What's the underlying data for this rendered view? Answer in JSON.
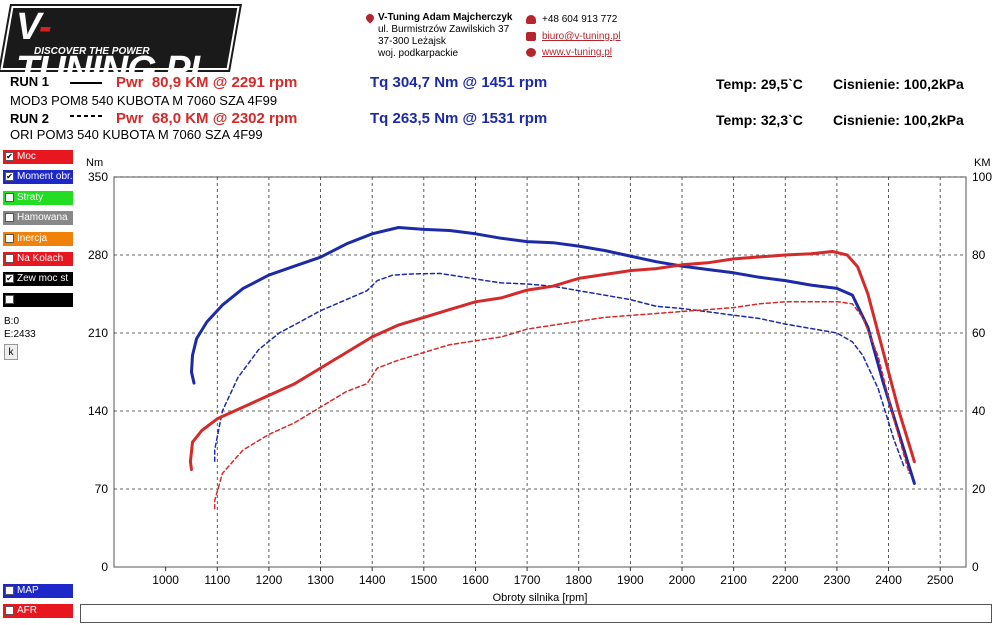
{
  "logo": {
    "title_a": "V",
    "title_dash": "-",
    "title_b": "TUNING.PL",
    "slogan": "DISCOVER THE POWER"
  },
  "contact": {
    "company": "V-Tuning Adam Majcherczyk",
    "street": "ul. Burmistrzów Zawilskich 37",
    "city": "37-300 Leżajsk",
    "region": "woj. podkarpackie",
    "phone": "+48 604 913 772",
    "email": "biuro@v-tuning.pl",
    "website": "www.v-tuning.pl"
  },
  "runs": [
    {
      "label": "RUN 1",
      "pwr": "Pwr  80,9 KM @ 2291 rpm",
      "tq": "Tq 304,7 Nm @ 1451 rpm",
      "temp": "Temp: 29,5`C",
      "press": "Cisnienie: 100,2kPa",
      "desc": "MOD3 POM8 540 KUBOTA M 7060 SZA 4F99"
    },
    {
      "label": "RUN 2",
      "pwr": "Pwr  68,0 KM @ 2302 rpm",
      "tq": "Tq 263,5 Nm @ 1531 rpm",
      "temp": "Temp: 32,3`C",
      "press": "Cisnienie: 100,2kPa",
      "desc": "ORI POM3 540 KUBOTA M 7060 SZA 4F99"
    }
  ],
  "sidebar": {
    "items": [
      {
        "label": "Moc",
        "checked": "✔",
        "color": "#e8161e"
      },
      {
        "label": "Moment obr.",
        "checked": "✔",
        "color": "#1e28c8"
      },
      {
        "label": "Straty",
        "checked": "",
        "color": "#22dd22"
      },
      {
        "label": "Hamowana",
        "checked": "",
        "color": "#888888"
      },
      {
        "label": "Inercja",
        "checked": "",
        "color": "#f0820a"
      },
      {
        "label": "Na Kolach",
        "checked": "",
        "color": "#e8161e"
      },
      {
        "label": "Zew moc st",
        "checked": "✔",
        "color": "#000000"
      },
      {
        "label": "",
        "checked": "",
        "color": "#000000"
      }
    ],
    "b_value": "B:0",
    "e_value": "E:2433",
    "k_button": "k",
    "bottom_items": [
      {
        "label": "MAP",
        "checked": "",
        "color": "#1e28c8"
      },
      {
        "label": "AFR",
        "checked": "",
        "color": "#e8161e"
      }
    ]
  },
  "chart_data": {
    "type": "line",
    "xlabel": "Obroty silnika [rpm]",
    "ylabel_left": "Nm",
    "ylabel_right": "KM",
    "xlim": [
      900,
      2550
    ],
    "ylim_left": [
      0,
      350
    ],
    "ylim_right": [
      0,
      100
    ],
    "x_ticks": [
      1000,
      1100,
      1200,
      1300,
      1400,
      1500,
      1600,
      1700,
      1800,
      1900,
      2000,
      2100,
      2200,
      2300,
      2400,
      2500
    ],
    "y_ticks_left": [
      0,
      70,
      140,
      210,
      280,
      350
    ],
    "y_ticks_right": [
      0,
      20,
      40,
      60,
      80,
      100
    ],
    "grid": true,
    "series": [
      {
        "axis": "left",
        "color": "#1c2aa8",
        "style": "solid",
        "width": 3,
        "points": [
          [
            1055,
            165
          ],
          [
            1050,
            175
          ],
          [
            1052,
            190
          ],
          [
            1060,
            205
          ],
          [
            1080,
            220
          ],
          [
            1110,
            235
          ],
          [
            1150,
            250
          ],
          [
            1200,
            262
          ],
          [
            1250,
            270
          ],
          [
            1300,
            278
          ],
          [
            1350,
            290
          ],
          [
            1400,
            299
          ],
          [
            1451,
            304.7
          ],
          [
            1500,
            303
          ],
          [
            1550,
            302
          ],
          [
            1600,
            299
          ],
          [
            1650,
            295
          ],
          [
            1700,
            292
          ],
          [
            1750,
            291
          ],
          [
            1800,
            288
          ],
          [
            1850,
            284
          ],
          [
            1900,
            279
          ],
          [
            1950,
            274
          ],
          [
            2000,
            270
          ],
          [
            2050,
            267
          ],
          [
            2100,
            264
          ],
          [
            2150,
            260
          ],
          [
            2200,
            257
          ],
          [
            2250,
            253
          ],
          [
            2300,
            250
          ],
          [
            2330,
            244
          ],
          [
            2360,
            215
          ],
          [
            2390,
            165
          ],
          [
            2420,
            120
          ],
          [
            2450,
            75
          ]
        ]
      },
      {
        "axis": "left",
        "color": "#1c2aa8",
        "style": "dashed",
        "width": 1.5,
        "points": [
          [
            1095,
            95
          ],
          [
            1095,
            105
          ],
          [
            1110,
            140
          ],
          [
            1140,
            170
          ],
          [
            1180,
            195
          ],
          [
            1220,
            210
          ],
          [
            1260,
            220
          ],
          [
            1300,
            230
          ],
          [
            1350,
            240
          ],
          [
            1390,
            248
          ],
          [
            1410,
            257
          ],
          [
            1440,
            262
          ],
          [
            1480,
            263
          ],
          [
            1531,
            263.5
          ],
          [
            1580,
            260
          ],
          [
            1620,
            257
          ],
          [
            1650,
            255
          ],
          [
            1700,
            254
          ],
          [
            1750,
            252
          ],
          [
            1800,
            248
          ],
          [
            1850,
            244
          ],
          [
            1900,
            240
          ],
          [
            1950,
            234
          ],
          [
            2000,
            232
          ],
          [
            2050,
            229
          ],
          [
            2100,
            226
          ],
          [
            2150,
            223
          ],
          [
            2200,
            218
          ],
          [
            2250,
            214
          ],
          [
            2300,
            210
          ],
          [
            2330,
            202
          ],
          [
            2350,
            190
          ],
          [
            2380,
            160
          ],
          [
            2410,
            115
          ],
          [
            2430,
            90
          ]
        ]
      },
      {
        "axis": "right",
        "color": "#d42a2a",
        "style": "solid",
        "width": 3,
        "points": [
          [
            1050,
            25
          ],
          [
            1048,
            27
          ],
          [
            1052,
            32
          ],
          [
            1070,
            35
          ],
          [
            1100,
            38
          ],
          [
            1150,
            41
          ],
          [
            1200,
            44
          ],
          [
            1250,
            47
          ],
          [
            1300,
            51
          ],
          [
            1350,
            55
          ],
          [
            1400,
            59
          ],
          [
            1450,
            62
          ],
          [
            1500,
            64
          ],
          [
            1550,
            66
          ],
          [
            1600,
            68
          ],
          [
            1650,
            69
          ],
          [
            1700,
            71
          ],
          [
            1750,
            72
          ],
          [
            1800,
            74
          ],
          [
            1850,
            75
          ],
          [
            1900,
            76
          ],
          [
            1950,
            76.5
          ],
          [
            2000,
            77.5
          ],
          [
            2050,
            78
          ],
          [
            2100,
            79
          ],
          [
            2150,
            79.5
          ],
          [
            2200,
            80
          ],
          [
            2250,
            80.3
          ],
          [
            2291,
            80.9
          ],
          [
            2320,
            80
          ],
          [
            2340,
            77
          ],
          [
            2360,
            70
          ],
          [
            2390,
            55
          ],
          [
            2420,
            40
          ],
          [
            2450,
            27
          ]
        ]
      },
      {
        "axis": "right",
        "color": "#d42a2a",
        "style": "dashed",
        "width": 1.5,
        "points": [
          [
            1095,
            15
          ],
          [
            1095,
            17
          ],
          [
            1110,
            24
          ],
          [
            1150,
            30
          ],
          [
            1200,
            34
          ],
          [
            1250,
            37
          ],
          [
            1300,
            41
          ],
          [
            1350,
            45
          ],
          [
            1390,
            47
          ],
          [
            1410,
            51
          ],
          [
            1450,
            53
          ],
          [
            1500,
            55
          ],
          [
            1550,
            57
          ],
          [
            1600,
            58
          ],
          [
            1650,
            59
          ],
          [
            1700,
            61
          ],
          [
            1750,
            62
          ],
          [
            1800,
            63
          ],
          [
            1850,
            64
          ],
          [
            1900,
            64.5
          ],
          [
            1950,
            65
          ],
          [
            2000,
            65.5
          ],
          [
            2050,
            66
          ],
          [
            2100,
            66.5
          ],
          [
            2150,
            67.5
          ],
          [
            2200,
            68
          ],
          [
            2250,
            68
          ],
          [
            2302,
            68.0
          ],
          [
            2330,
            67.5
          ],
          [
            2350,
            64
          ],
          [
            2380,
            54
          ],
          [
            2410,
            38
          ],
          [
            2440,
            24
          ]
        ]
      }
    ]
  }
}
